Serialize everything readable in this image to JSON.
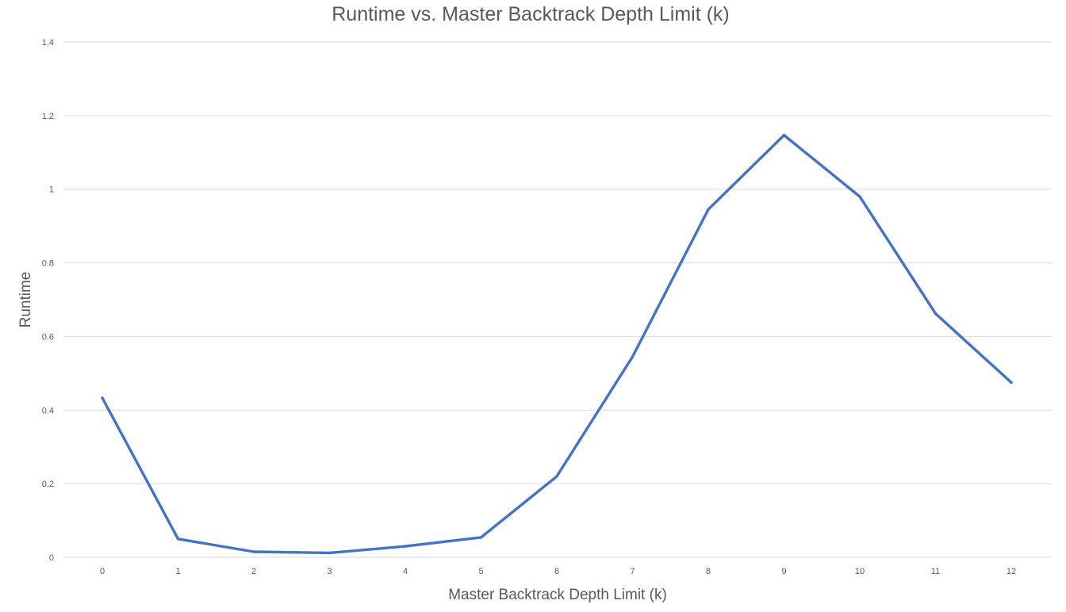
{
  "chart_data": {
    "type": "line",
    "title": "Runtime vs. Master Backtrack Depth Limit (k)",
    "xlabel": "Master Backtrack Depth Limit (k)",
    "ylabel": "Runtime",
    "categories": [
      "0",
      "1",
      "2",
      "3",
      "4",
      "5",
      "6",
      "7",
      "8",
      "9",
      "10",
      "11",
      "12"
    ],
    "yticks": [
      "0",
      "0.2",
      "0.4",
      "0.6",
      "0.8",
      "1",
      "1.2",
      "1.4"
    ],
    "ylim": [
      0,
      1.4
    ],
    "grid": true,
    "series": [
      {
        "values": [
          0.433,
          0.05,
          0.015,
          0.012,
          0.03,
          0.054,
          0.22,
          0.545,
          0.945,
          1.147,
          0.98,
          0.662,
          0.475
        ]
      }
    ],
    "colors": {
      "line": "#4472c4",
      "grid": "#d9d9d9",
      "text": "#595959"
    }
  }
}
